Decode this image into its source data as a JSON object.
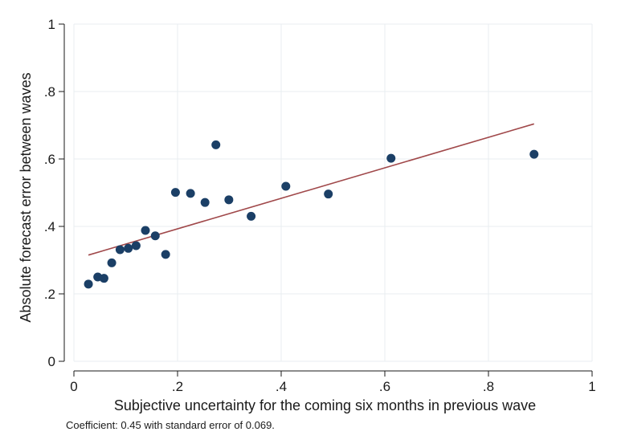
{
  "chart_data": {
    "type": "scatter",
    "title": "",
    "xlabel": "Subjective uncertainty for the coming six months in previous wave",
    "ylabel": "Absolute forecast error between waves",
    "xlim": [
      0,
      1
    ],
    "ylim": [
      0,
      1
    ],
    "x_ticks": [
      0,
      0.2,
      0.4,
      0.6,
      0.8,
      1
    ],
    "x_tick_labels": [
      "0",
      ".2",
      ".4",
      ".6",
      ".8",
      "1"
    ],
    "y_ticks": [
      0,
      0.2,
      0.4,
      0.6,
      0.8,
      1
    ],
    "y_tick_labels": [
      "0",
      ".2",
      ".4",
      ".6",
      ".8",
      "1"
    ],
    "grid": true,
    "series": [
      {
        "type": "scatter",
        "x": [
          0.028,
          0.046,
          0.058,
          0.073,
          0.089,
          0.105,
          0.12,
          0.138,
          0.157,
          0.177,
          0.196,
          0.225,
          0.253,
          0.274,
          0.299,
          0.342,
          0.409,
          0.491,
          0.612,
          0.888
        ],
        "y": [
          0.229,
          0.25,
          0.246,
          0.292,
          0.331,
          0.335,
          0.343,
          0.388,
          0.372,
          0.317,
          0.501,
          0.498,
          0.471,
          0.642,
          0.479,
          0.43,
          0.519,
          0.496,
          0.602,
          0.614
        ]
      },
      {
        "type": "line",
        "x": [
          0.028,
          0.888
        ],
        "y": [
          0.315,
          0.704
        ]
      }
    ],
    "colors": {
      "points": "#1b3f66",
      "fit_line": "#a0484a",
      "grid": "#e8eef0"
    },
    "note": "Coefficient: 0.45 with standard error of 0.069."
  }
}
